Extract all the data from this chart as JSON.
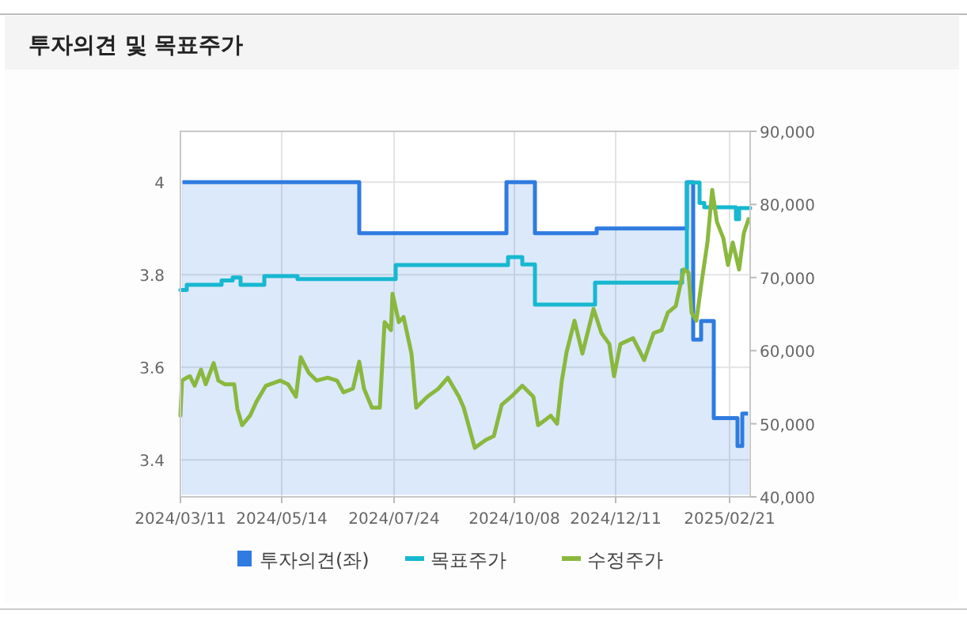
{
  "chart_data": {
    "type": "line",
    "title": "투자의견 및 목표주가",
    "xlim": [
      "2024-03-11",
      "2025-03-06"
    ],
    "xticks": [
      {
        "value": "2024-03-11",
        "label": "2024/03/11"
      },
      {
        "value": "2024-05-14",
        "label": "2024/05/14"
      },
      {
        "value": "2024-07-24",
        "label": "2024/07/24"
      },
      {
        "value": "2024-10-08",
        "label": "2024/10/08"
      },
      {
        "value": "2024-12-11",
        "label": "2024/12/11"
      },
      {
        "value": "2025-02-21",
        "label": "2025/02/21"
      }
    ],
    "ylim": [
      3.32,
      4.11
    ],
    "yticks": [
      3.4,
      3.6,
      3.8,
      4
    ],
    "y2lim": [
      40000,
      90000
    ],
    "y2ticks": [
      {
        "value": 40000,
        "label": "40,000"
      },
      {
        "value": 50000,
        "label": "50,000"
      },
      {
        "value": 60000,
        "label": "60,000"
      },
      {
        "value": 70000,
        "label": "70,000"
      },
      {
        "value": 80000,
        "label": "80,000"
      },
      {
        "value": 90000,
        "label": "90,000"
      }
    ],
    "grid": true,
    "legend": "bottom",
    "series": [
      {
        "name": "투자의견(좌)",
        "type": "area",
        "color": "#2f7be0",
        "x": [
          "2024-03-11",
          "2024-07-02",
          "2024-10-03",
          "2024-10-21",
          "2024-11-29",
          "2025-01-25",
          "2025-01-29",
          "2025-02-03",
          "2025-02-11",
          "2025-02-26",
          "2025-03-01",
          "2025-03-06"
        ],
        "values": [
          4.0,
          3.89,
          4.0,
          3.89,
          3.9,
          4.0,
          3.66,
          3.7,
          3.49,
          3.43,
          3.5,
          3.5
        ]
      },
      {
        "name": "목표주가",
        "type": "step",
        "axis": "y2",
        "color": "#17b8d0",
        "x": [
          "2024-03-11",
          "2024-03-15",
          "2024-04-06",
          "2024-04-13",
          "2024-04-18",
          "2024-05-03",
          "2024-05-24",
          "2024-07-25",
          "2024-10-04",
          "2024-10-13",
          "2024-10-21",
          "2024-11-28",
          "2025-01-22",
          "2025-01-25",
          "2025-02-02",
          "2025-02-05",
          "2025-02-25",
          "2025-02-27",
          "2025-03-06"
        ],
        "values": [
          68300,
          69000,
          69600,
          70000,
          69000,
          70200,
          69800,
          71700,
          72800,
          71800,
          66300,
          69300,
          71000,
          83000,
          80200,
          79600,
          78000,
          79500,
          79500
        ]
      },
      {
        "name": "수정주가",
        "type": "line",
        "axis": "y2",
        "color": "#8ab83f",
        "x": [
          "2024-03-11",
          "2024-03-12",
          "2024-03-15",
          "2024-03-17",
          "2024-03-20",
          "2024-03-24",
          "2024-03-27",
          "2024-04-01",
          "2024-04-04",
          "2024-04-08",
          "2024-04-14",
          "2024-04-16",
          "2024-04-19",
          "2024-04-24",
          "2024-04-28",
          "2024-05-04",
          "2024-05-13",
          "2024-05-18",
          "2024-05-23",
          "2024-05-26",
          "2024-05-31",
          "2024-06-05",
          "2024-06-12",
          "2024-06-18",
          "2024-06-22",
          "2024-06-28",
          "2024-07-02",
          "2024-07-05",
          "2024-07-10",
          "2024-07-15",
          "2024-07-18",
          "2024-07-22",
          "2024-07-23",
          "2024-07-27",
          "2024-07-30",
          "2024-08-04",
          "2024-08-07",
          "2024-08-14",
          "2024-08-21",
          "2024-08-27",
          "2024-09-03",
          "2024-09-06",
          "2024-09-13",
          "2024-09-20",
          "2024-09-25",
          "2024-09-30",
          "2024-10-06",
          "2024-10-13",
          "2024-10-20",
          "2024-10-23",
          "2024-10-31",
          "2024-11-04",
          "2024-11-07",
          "2024-11-10",
          "2024-11-15",
          "2024-11-20",
          "2024-11-27",
          "2024-12-02",
          "2024-12-07",
          "2024-12-10",
          "2024-12-14",
          "2024-12-22",
          "2024-12-29",
          "2025-01-04",
          "2025-01-09",
          "2025-01-13",
          "2025-01-18",
          "2025-01-23",
          "2025-01-26",
          "2025-01-28",
          "2025-01-31",
          "2025-02-03",
          "2025-02-07",
          "2025-02-10",
          "2025-02-13",
          "2025-02-17",
          "2025-02-20",
          "2025-02-23",
          "2025-02-27",
          "2025-03-02",
          "2025-03-05"
        ],
        "values": [
          51100,
          55900,
          56300,
          56500,
          55200,
          57400,
          55400,
          58300,
          55900,
          55400,
          55400,
          52000,
          49800,
          51100,
          53000,
          55200,
          55900,
          55400,
          53700,
          59100,
          57000,
          55900,
          56300,
          55900,
          54300,
          54800,
          58500,
          54800,
          52200,
          52200,
          63900,
          62800,
          67800,
          63900,
          64600,
          59600,
          52200,
          53700,
          54800,
          56300,
          53700,
          52200,
          46700,
          47800,
          48300,
          52600,
          53700,
          55200,
          53700,
          49800,
          51100,
          50000,
          55900,
          59800,
          64100,
          59600,
          65700,
          62400,
          60900,
          56500,
          60900,
          61700,
          58700,
          62400,
          62800,
          65200,
          66100,
          71100,
          70700,
          65200,
          64100,
          68900,
          74800,
          82000,
          77600,
          75400,
          71700,
          74800,
          71100,
          76100,
          78000
        ]
      }
    ]
  }
}
